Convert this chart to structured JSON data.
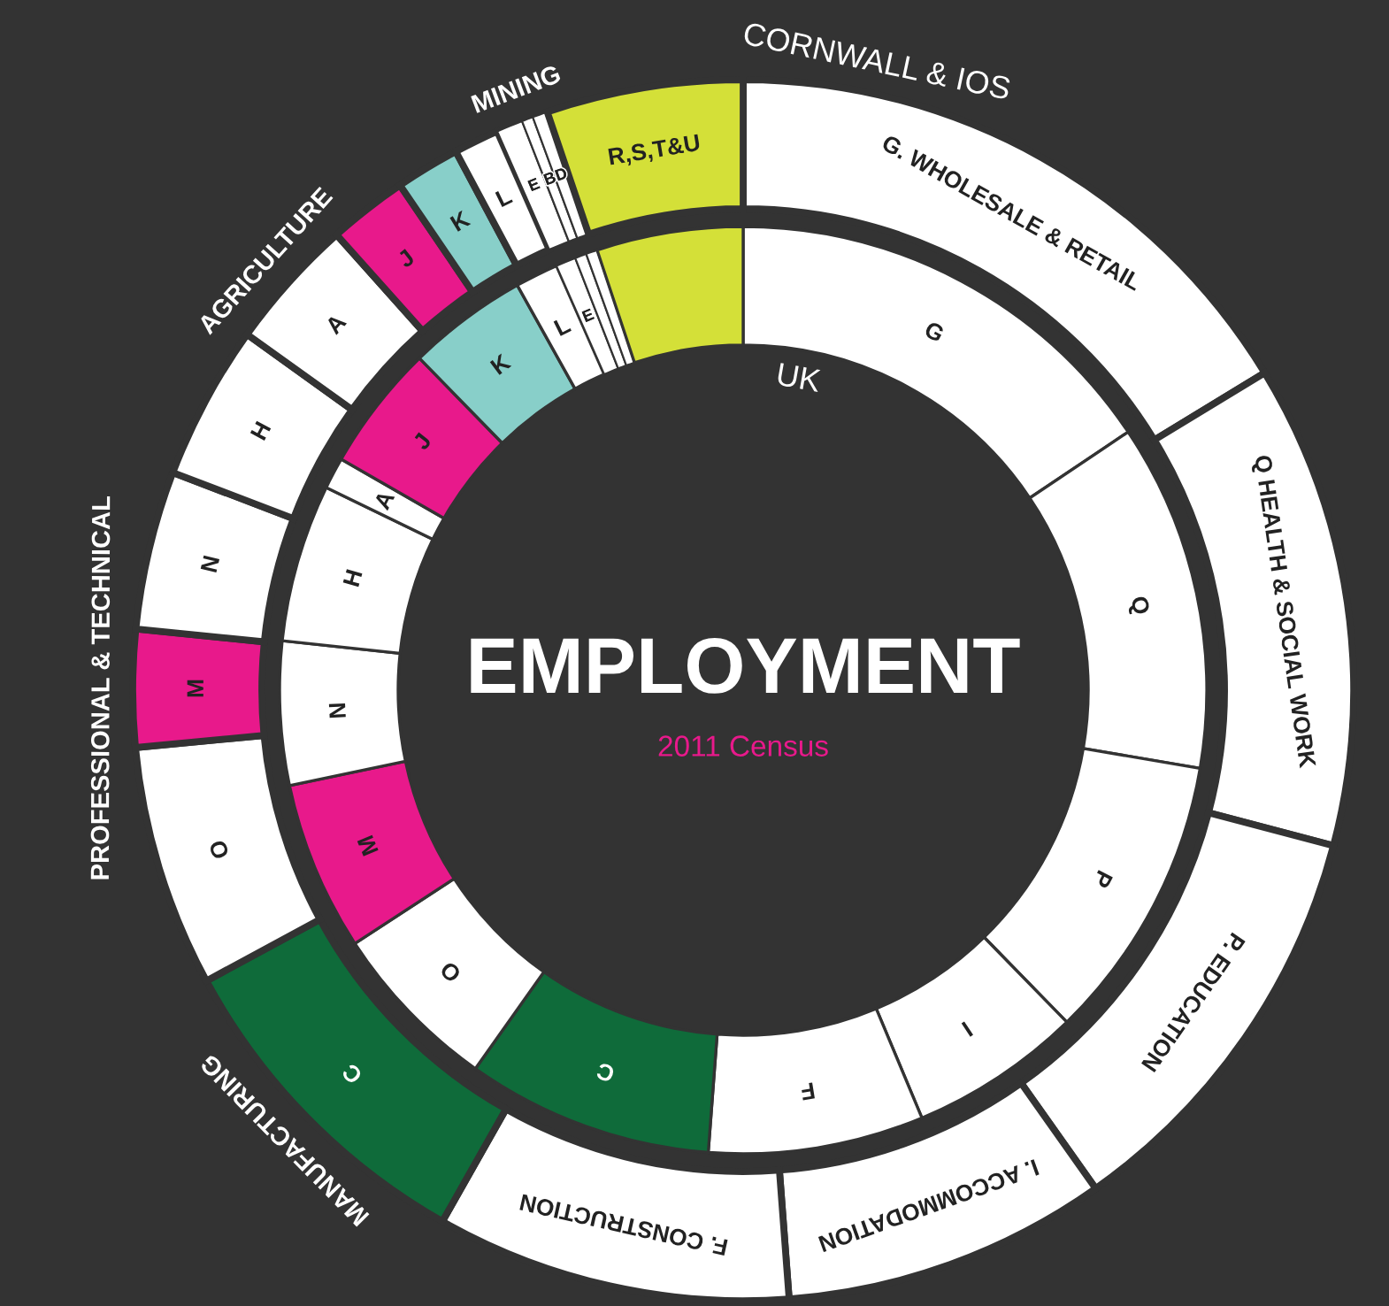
{
  "chart_data": {
    "type": "donut",
    "title": "EMPLOYMENT",
    "subtitle": "2011 Census",
    "legend": false,
    "categories": [
      "G. WHOLESALE & RETAIL",
      "Q HEALTH & SOCIAL WORK",
      "P. EDUCATION",
      "I. ACCOMMODATION",
      "F. CONSTRUCTION",
      "C",
      "O",
      "M",
      "N",
      "H",
      "A",
      "J",
      "K",
      "L",
      "E",
      "B",
      "D",
      "R,S,T&U"
    ],
    "colors": [
      "#ffffff",
      "#ffffff",
      "#ffffff",
      "#ffffff",
      "#ffffff",
      "#0f6b3a",
      "#ffffff",
      "#e8198b",
      "#ffffff",
      "#ffffff",
      "#ffffff",
      "#e8198b",
      "#88cfc9",
      "#ffffff",
      "#ffffff",
      "#ffffff",
      "#ffffff",
      "#d4e038"
    ],
    "series": [
      {
        "name": "CORNWALL & IOS",
        "values": [
          16.3,
          12.8,
          11.1,
          8.6,
          9.4,
          8.9,
          6.4,
          3.1,
          4.2,
          4.1,
          3.5,
          2.1,
          1.7,
          1.2,
          0.7,
          0.3,
          0.4,
          5.2
        ]
      },
      {
        "name": "UK",
        "values": [
          15.6,
          12.1,
          10.0,
          6.0,
          7.5,
          8.6,
          6.0,
          5.9,
          5.0,
          5.5,
          1.1,
          4.4,
          4.2,
          1.5,
          0.7,
          0.4,
          0.4,
          5.1
        ],
        "value_labels": [
          "G",
          "Q",
          "P",
          "I",
          "F",
          "C",
          "O",
          "M",
          "N",
          "H",
          "A",
          "J",
          "K",
          "L",
          "E",
          null,
          null,
          null
        ]
      }
    ],
    "annotations": [
      {
        "text": "MANUFACTURING",
        "x": "C"
      },
      {
        "text": "PROFESSIONAL & TECHNICAL",
        "x": "M"
      },
      {
        "text": "AGRICULTURE",
        "x": "A"
      },
      {
        "text": "MINING",
        "x": "B"
      }
    ]
  }
}
